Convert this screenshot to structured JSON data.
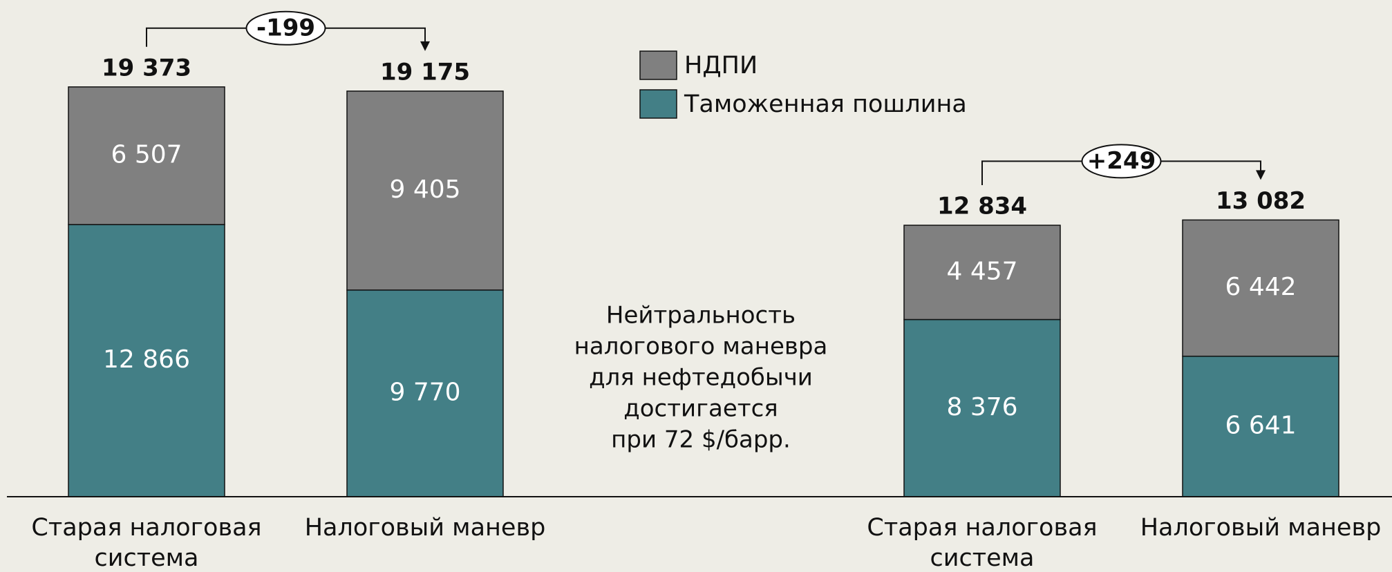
{
  "chart_data": {
    "type": "stacked_bar",
    "categories": [
      "Старая налоговая система",
      "Налоговый маневр",
      "Старая налоговая система",
      "Налоговый маневр"
    ],
    "series": [
      {
        "name": "Таможенная пошлина",
        "color": "#437f86",
        "values": [
          12866,
          9770,
          8376,
          6641
        ],
        "value_labels": [
          "12 866",
          "9 770",
          "8 376",
          "6 641"
        ]
      },
      {
        "name": "НДПИ",
        "color": "#808080",
        "values": [
          6507,
          9405,
          4457,
          6442
        ],
        "value_labels": [
          "6 507",
          "9 405",
          "4 457",
          "6 442"
        ]
      }
    ],
    "totals": {
      "values": [
        19373,
        19175,
        12834,
        13082
      ],
      "value_labels": [
        "19 373",
        "19 175",
        "12 834",
        "13 082"
      ]
    },
    "differences": [
      {
        "from": 0,
        "to": 1,
        "label": "-199"
      },
      {
        "from": 2,
        "to": 3,
        "label": "+249"
      }
    ],
    "annotation": [
      "Нейтральность",
      "налогового маневра",
      "для нефтедобычи",
      "достигается",
      "при 72 $/барр."
    ]
  }
}
